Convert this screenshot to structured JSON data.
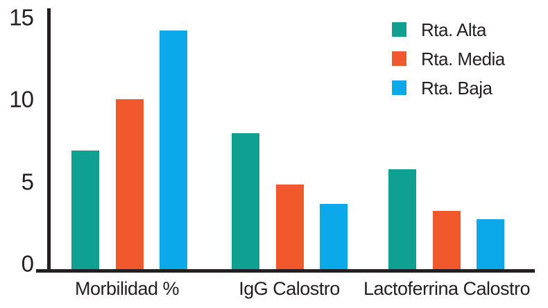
{
  "chart_data": {
    "type": "bar",
    "title": "",
    "categories": [
      "Morbilidad %",
      "IgG Calostro",
      "Lactoferrina Calostro"
    ],
    "series": [
      {
        "name": "Rta. Alta",
        "color": "#10A091",
        "values": [
          7,
          8,
          5.9
        ]
      },
      {
        "name": "Rta. Media",
        "color": "#F1582B",
        "values": [
          10,
          5,
          3.5
        ]
      },
      {
        "name": "Rta. Baja",
        "color": "#0CA9E8",
        "values": [
          14,
          3.9,
          3
        ]
      }
    ],
    "xlabel": "",
    "ylabel": "",
    "ylim": [
      0,
      15
    ],
    "yticks": [
      0,
      5,
      10,
      15
    ],
    "grid": false,
    "legend_position": "top-right",
    "axis_color": "#231F20",
    "text_color": "#231F20",
    "background_color": "#FFFFFF"
  }
}
